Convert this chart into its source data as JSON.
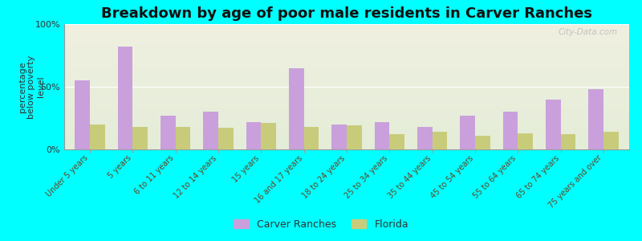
{
  "title": "Breakdown by age of poor male residents in Carver Ranches",
  "ylabel": "percentage\nbelow poverty\nlevel",
  "categories": [
    "Under 5 years",
    "5 years",
    "6 to 11 years",
    "12 to 14 years",
    "15 years",
    "16 and 17 years",
    "18 to 24 years",
    "25 to 34 years",
    "35 to 44 years",
    "45 to 54 years",
    "55 to 64 years",
    "65 to 74 years",
    "75 years and over"
  ],
  "carver_ranches": [
    55,
    82,
    27,
    30,
    22,
    65,
    20,
    22,
    18,
    27,
    30,
    40,
    48
  ],
  "florida": [
    20,
    18,
    18,
    17,
    21,
    18,
    19,
    12,
    14,
    11,
    13,
    12,
    14
  ],
  "carver_color": "#c9a0dc",
  "florida_color": "#c8cc7a",
  "background_color": "#00ffff",
  "plot_bg_top": "#f0f0e0",
  "plot_bg_bottom": "#e4edd8",
  "ylim": [
    0,
    100
  ],
  "yticks": [
    0,
    50,
    100
  ],
  "ytick_labels": [
    "0%",
    "50%",
    "100%"
  ],
  "title_fontsize": 13,
  "ylabel_fontsize": 8,
  "tick_label_fontsize": 7,
  "legend_labels": [
    "Carver Ranches",
    "Florida"
  ],
  "watermark": "City-Data.com"
}
